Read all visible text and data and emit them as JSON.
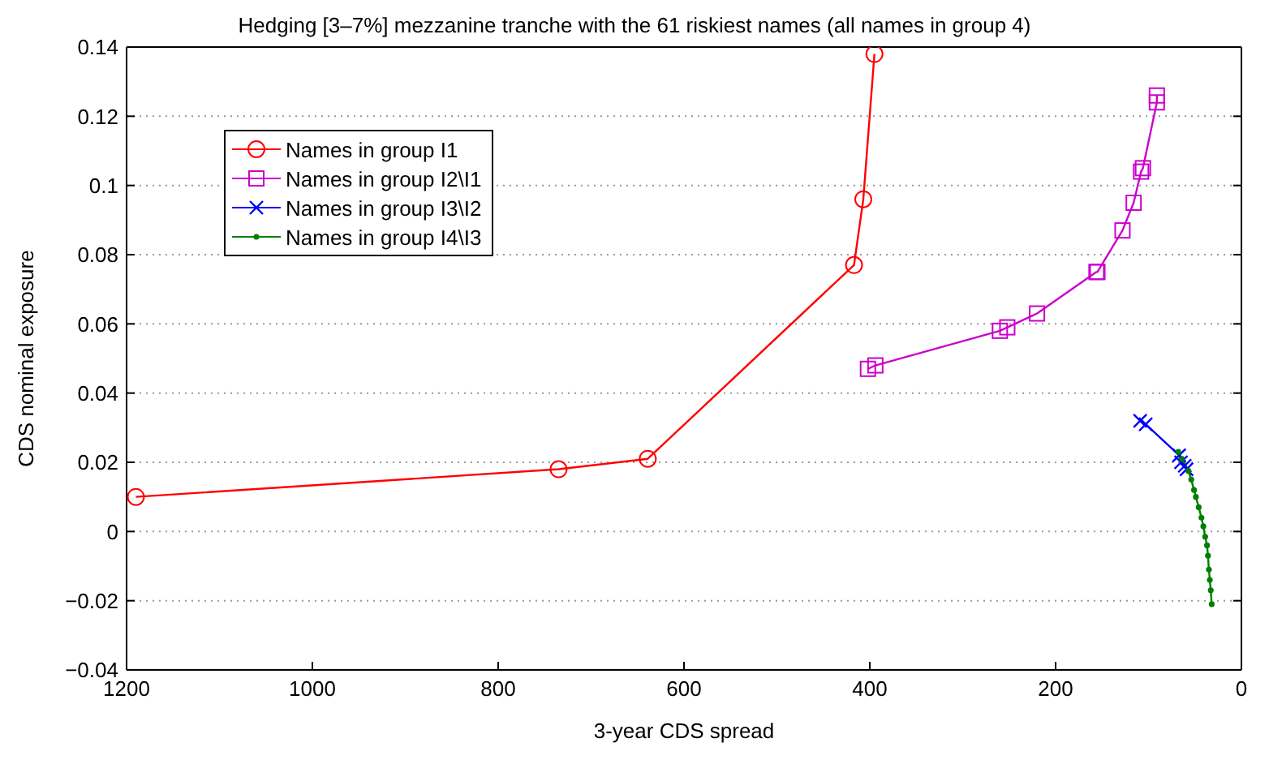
{
  "chart_data": {
    "type": "line",
    "title": "Hedging [3–7%] mezzanine tranche with the 61 riskiest names (all names in group 4)",
    "xlabel": "3-year CDS spread",
    "ylabel": "CDS nominal exposure",
    "xlim": [
      1200,
      0
    ],
    "xticks": [
      1200,
      1000,
      800,
      600,
      400,
      200,
      0
    ],
    "ylim": [
      -0.04,
      0.14
    ],
    "yticks": [
      {
        "value": -0.04,
        "label": "−0.04"
      },
      {
        "value": -0.02,
        "label": "−0.02"
      },
      0,
      0.02,
      0.04,
      0.06,
      0.08,
      0.1,
      0.12,
      0.14
    ],
    "grid": "y",
    "legend": "top left",
    "line_style": "solid",
    "series": [
      {
        "name": "Names in group I1",
        "color": "#ff0000",
        "marker": "circle",
        "x": [
          1190,
          735,
          639,
          417,
          407,
          395
        ],
        "values": [
          0.01,
          0.018,
          0.021,
          0.077,
          0.096,
          0.138
        ]
      },
      {
        "name": "Names in group I2\\I1",
        "color": "#cc00cc",
        "marker": "square",
        "x": [
          402,
          394,
          260,
          252,
          220,
          156,
          155,
          128,
          116,
          108,
          106,
          91,
          91
        ],
        "values": [
          0.047,
          0.048,
          0.058,
          0.059,
          0.063,
          0.075,
          0.075,
          0.087,
          0.095,
          0.104,
          0.105,
          0.124,
          0.126
        ]
      },
      {
        "name": "Names in group I3\\I2",
        "color": "#0000ff",
        "marker": "cross",
        "x": [
          109,
          103,
          67,
          65,
          61,
          59
        ],
        "values": [
          0.032,
          0.031,
          0.022,
          0.02,
          0.019,
          0.018
        ]
      },
      {
        "name": "Names in group I4\\I3",
        "color": "#008000",
        "marker": "dot",
        "x": [
          68,
          64,
          57,
          54,
          51,
          49,
          46,
          43,
          41,
          39,
          37,
          36,
          35,
          34,
          33,
          32
        ],
        "values": [
          0.023,
          0.021,
          0.0175,
          0.015,
          0.012,
          0.01,
          0.007,
          0.004,
          0.0015,
          -0.0015,
          -0.004,
          -0.007,
          -0.011,
          -0.014,
          -0.017,
          -0.021
        ]
      }
    ]
  }
}
